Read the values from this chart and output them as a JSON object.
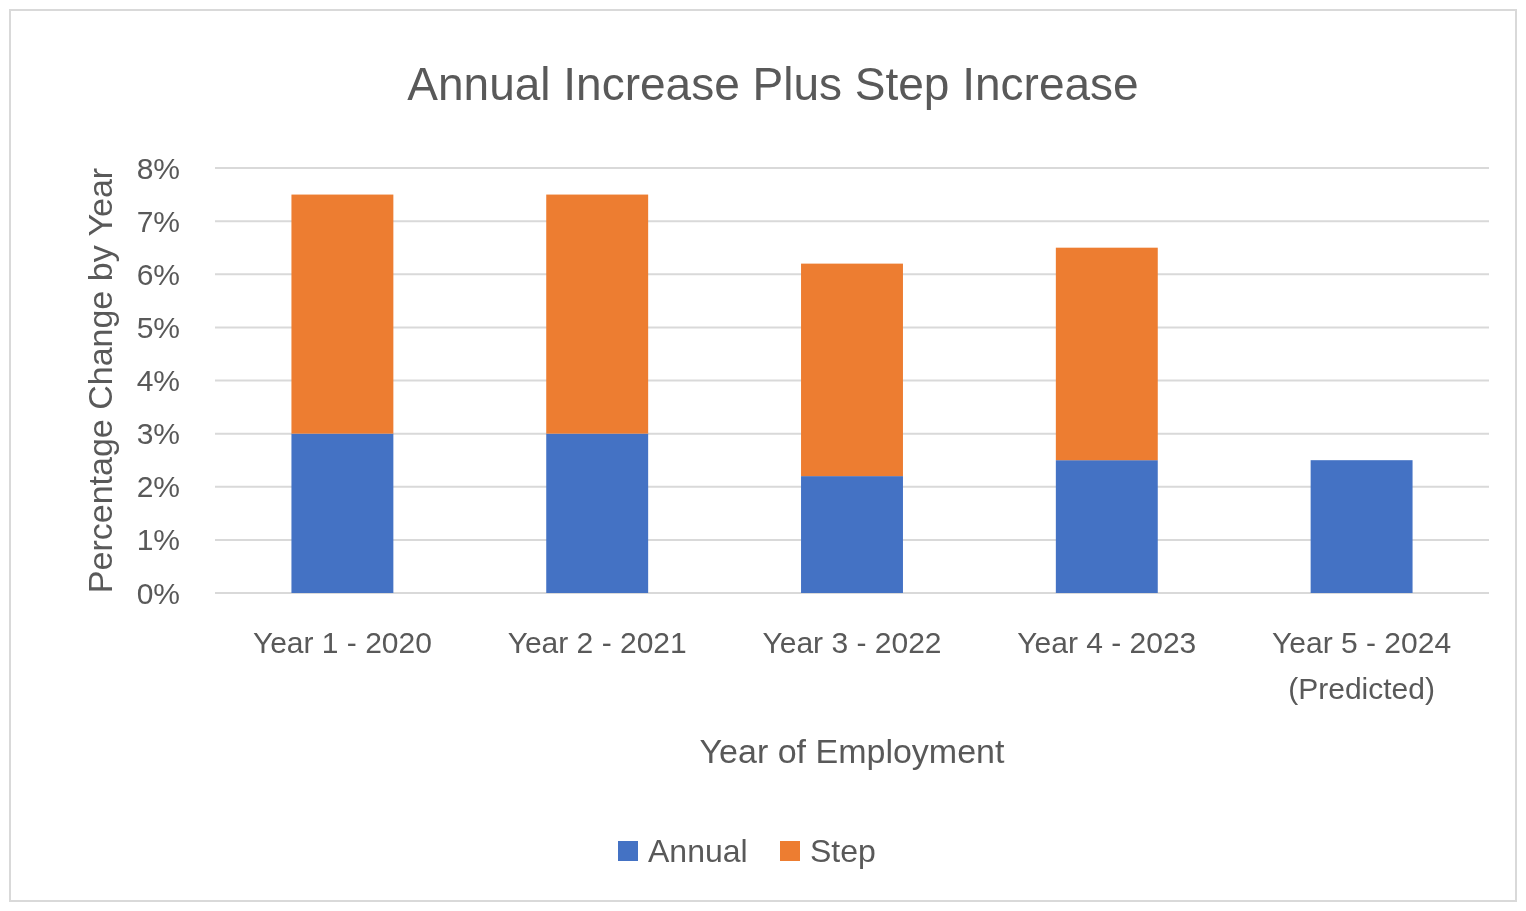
{
  "chart_data": {
    "type": "bar",
    "title": "Annual Increase Plus Step Increase",
    "xlabel": "Year of Employment",
    "ylabel": "Percentage Change by Year",
    "categories": [
      "Year 1 - 2020",
      "Year 2 - 2021",
      "Year 3 - 2022",
      "Year 4 - 2023",
      "Year 5 - 2024 (Predicted)"
    ],
    "series": [
      {
        "name": "Annual",
        "color": "#4472c4",
        "values": [
          3,
          3,
          2.2,
          2.5,
          2.5
        ]
      },
      {
        "name": "Step",
        "color": "#ed7d31",
        "values": [
          4.5,
          4.5,
          4,
          4,
          null
        ]
      }
    ],
    "stacked": true,
    "ylim": [
      0,
      8
    ],
    "yticks": [
      {
        "value": 0,
        "label": "0%"
      },
      {
        "value": 1,
        "label": "1%"
      },
      {
        "value": 2,
        "label": "2%"
      },
      {
        "value": 3,
        "label": "3%"
      },
      {
        "value": 4,
        "label": "4%"
      },
      {
        "value": 5,
        "label": "5%"
      },
      {
        "value": 6,
        "label": "6%"
      },
      {
        "value": 7,
        "label": "7%"
      },
      {
        "value": 8,
        "label": "8%"
      }
    ],
    "grid": "y",
    "legend": "bottom"
  }
}
